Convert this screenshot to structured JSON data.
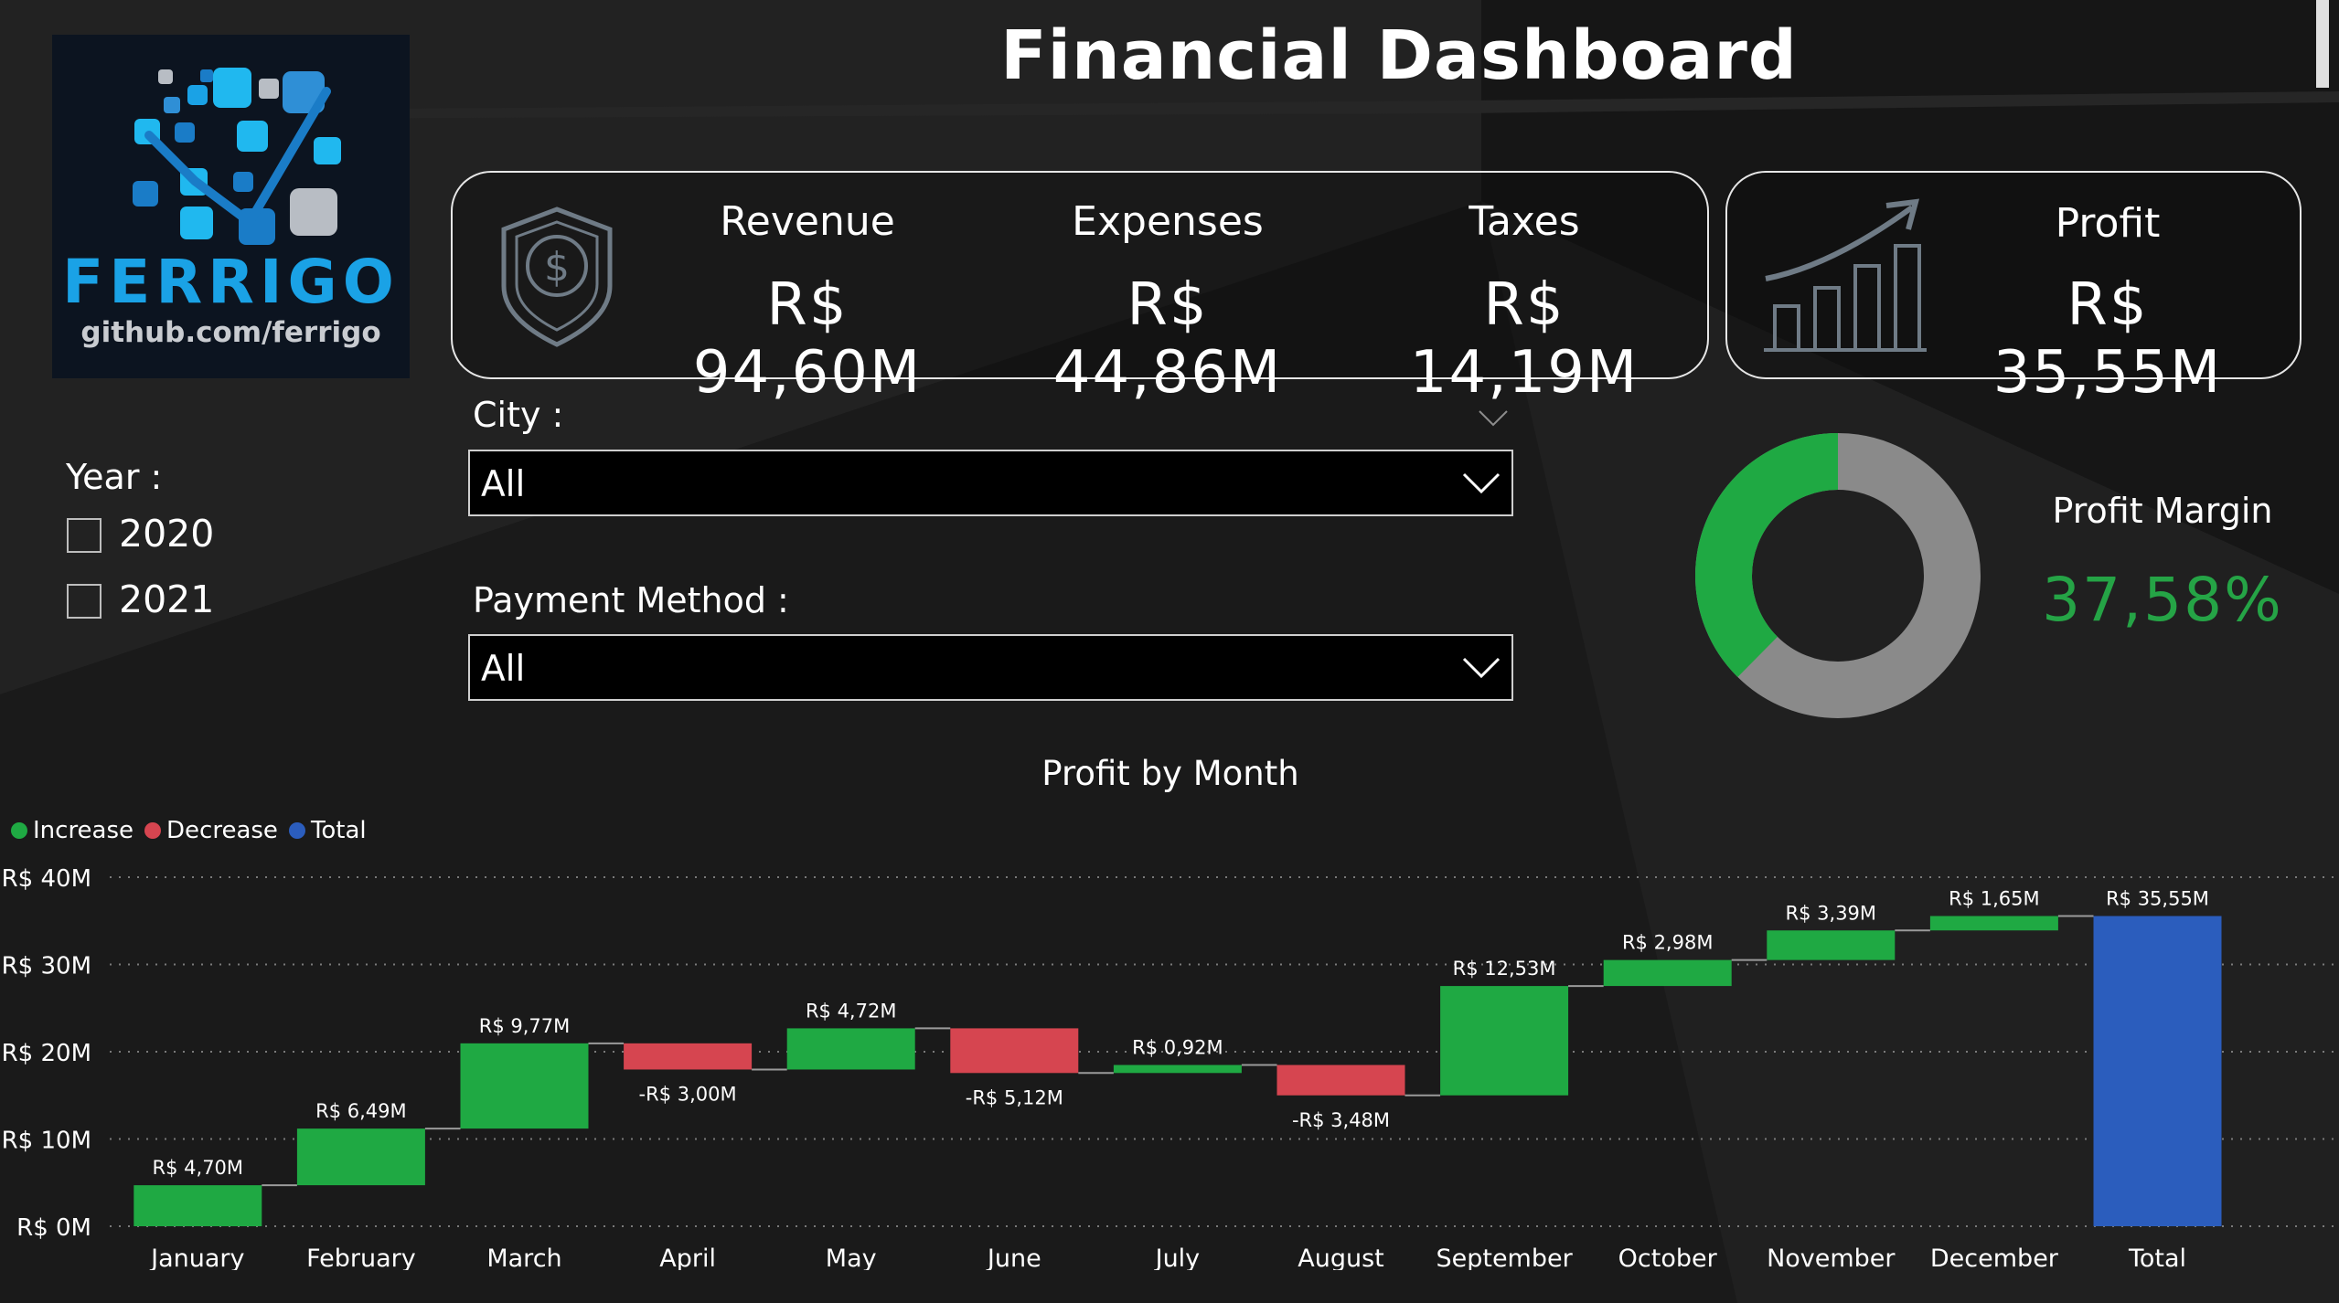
{
  "logo": {
    "word": "FERRIGO",
    "url": "github.com/ferrigo"
  },
  "title": "Financial Dashboard",
  "kpis": {
    "revenue": {
      "label": "Revenue",
      "value": "R$ 94,60M"
    },
    "expenses": {
      "label": "Expenses",
      "value": "R$ 44,86M"
    },
    "taxes": {
      "label": "Taxes",
      "value": "R$ 14,19M"
    },
    "profit": {
      "label": "Profit",
      "value": "R$ 35,55M"
    }
  },
  "filters": {
    "year": {
      "label": "Year :",
      "options": [
        "2020",
        "2021"
      ]
    },
    "city": {
      "label": "City :",
      "value": "All"
    },
    "payment": {
      "label": "Payment Method :",
      "value": "All"
    }
  },
  "profit_margin": {
    "label": "Profit Margin",
    "value": "37,58%",
    "fraction": 0.3758
  },
  "colors": {
    "increase": "#1fa943",
    "decrease": "#d64550",
    "total": "#2b5dbd",
    "gauge_rest": "#8a8a8a",
    "gauge_fill": "#1fa943"
  },
  "icons": {
    "kpi": "shield-dollar-icon",
    "profit": "growth-chart-icon",
    "dropdown": "chevron-down-icon"
  },
  "chart_data": {
    "type": "waterfall",
    "title": "Profit by Month",
    "legend": [
      {
        "name": "Increase",
        "color": "#1fa943"
      },
      {
        "name": "Decrease",
        "color": "#d64550"
      },
      {
        "name": "Total",
        "color": "#2b5dbd"
      }
    ],
    "legend_position": "top-left",
    "ylim": [
      0,
      40
    ],
    "yticks": [
      {
        "value": 0,
        "label": "R$ 0M"
      },
      {
        "value": 10,
        "label": "R$ 10M"
      },
      {
        "value": 20,
        "label": "R$ 20M"
      },
      {
        "value": 30,
        "label": "R$ 30M"
      },
      {
        "value": 40,
        "label": "R$ 40M"
      }
    ],
    "grid": true,
    "categories": [
      "January",
      "February",
      "March",
      "April",
      "May",
      "June",
      "July",
      "August",
      "September",
      "October",
      "November",
      "December",
      "Total"
    ],
    "values": [
      4.7,
      6.49,
      9.77,
      -3.0,
      4.72,
      -5.12,
      0.92,
      -3.48,
      12.53,
      2.98,
      3.39,
      1.65,
      35.55
    ],
    "labels": [
      "R$ 4,70M",
      "R$ 6,49M",
      "R$ 9,77M",
      "-R$ 3,00M",
      "R$ 4,72M",
      "-R$ 5,12M",
      "R$ 0,92M",
      "-R$ 3,48M",
      "R$ 12,53M",
      "R$ 2,98M",
      "R$ 3,39M",
      "R$ 1,65M",
      "R$ 35,55M"
    ],
    "kinds": [
      "increase",
      "increase",
      "increase",
      "decrease",
      "increase",
      "decrease",
      "increase",
      "decrease",
      "increase",
      "increase",
      "increase",
      "increase",
      "total"
    ]
  }
}
